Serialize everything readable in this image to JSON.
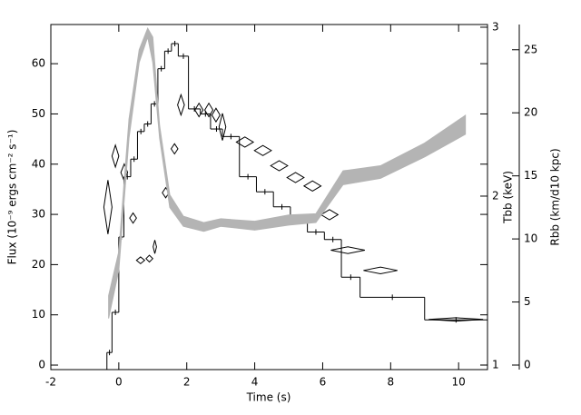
{
  "chart_data": [
    {
      "type": "histogram",
      "axis_position": "left",
      "color": "#000000",
      "xlabel": "Time (s)",
      "ylabel": "Flux (10⁻⁹ ergs cm⁻² s⁻¹)",
      "xlim": [
        -2,
        10.85
      ],
      "xticks": [
        -2,
        0,
        2,
        4,
        6,
        8,
        10
      ],
      "ylim": [
        -0.9,
        67.8
      ],
      "yticks": [
        0,
        10,
        20,
        30,
        40,
        50,
        60
      ],
      "bins": [
        -0.35,
        -0.2,
        0,
        0.15,
        0.35,
        0.55,
        0.75,
        0.95,
        1.15,
        1.35,
        1.55,
        1.75,
        2.05,
        2.4,
        2.7,
        3.05,
        3.55,
        4.05,
        4.55,
        5.05,
        5.55,
        6.05,
        6.55,
        7.1,
        9.0,
        10.85
      ],
      "values": [
        2.5,
        10.5,
        25.5,
        37.5,
        41,
        46.5,
        48,
        52,
        59,
        62.5,
        64,
        61.5,
        51,
        50,
        47,
        45.5,
        37.5,
        34.5,
        31.5,
        29,
        26.5,
        25,
        17.5,
        13.5,
        9
      ]
    },
    {
      "type": "scatter",
      "axis_position": "right",
      "color": "#000000",
      "ylabel": "Tbb (keV)",
      "ylim": [
        0.973,
        3.016
      ],
      "yticks": [
        1,
        2,
        3
      ],
      "x": [
        -0.32,
        -0.1,
        0.16,
        0.42,
        0.64,
        0.9,
        1.06,
        1.38,
        1.64,
        1.83,
        2.36,
        2.65,
        2.86,
        3.05,
        3.71,
        4.24,
        4.72,
        5.2,
        5.7,
        6.2,
        6.74,
        7.7,
        9.92
      ],
      "xerr": [
        0.12,
        0.1,
        0.1,
        0.1,
        0.12,
        0.1,
        0.05,
        0.1,
        0.1,
        0.1,
        0.12,
        0.12,
        0.12,
        0.1,
        0.25,
        0.25,
        0.25,
        0.25,
        0.25,
        0.25,
        0.5,
        0.5,
        0.8
      ],
      "values": [
        1.935,
        2.237,
        2.14,
        1.87,
        1.62,
        1.63,
        1.7,
        2.02,
        2.28,
        2.54,
        2.51,
        2.51,
        2.48,
        2.41,
        2.32,
        2.27,
        2.18,
        2.11,
        2.06,
        1.89,
        1.68,
        1.56,
        1.27
      ],
      "yerr": [
        0.16,
        0.065,
        0.05,
        0.03,
        0.02,
        0.02,
        0.04,
        0.03,
        0.03,
        0.06,
        0.04,
        0.04,
        0.04,
        0.08,
        0.03,
        0.03,
        0.03,
        0.03,
        0.03,
        0.03,
        0.02,
        0.02,
        0.01
      ]
    },
    {
      "type": "band",
      "axis_position": "outer-right",
      "color": "#b4b4b4",
      "ylabel": "Rbb (km/d10 kpc)",
      "ylim": [
        -0.36,
        27
      ],
      "yticks": [
        0,
        5,
        10,
        15,
        20,
        25
      ],
      "x": [
        -0.3,
        0,
        0.3,
        0.6,
        0.85,
        1.0,
        1.2,
        1.5,
        1.9,
        2.5,
        3.0,
        4.0,
        5.0,
        5.8,
        6.6,
        7.7,
        9.0,
        10.2
      ],
      "lower": [
        3.7,
        7.5,
        18,
        24,
        26,
        24,
        18,
        12.5,
        11,
        10.6,
        11,
        10.7,
        11.1,
        11.3,
        14.3,
        14.8,
        16.5,
        18.3
      ],
      "upper": [
        5.5,
        9,
        19.5,
        25,
        26.7,
        26,
        19,
        13.5,
        11.8,
        11.3,
        11.6,
        11.4,
        11.9,
        12,
        15.4,
        15.8,
        17.6,
        19.8
      ]
    }
  ]
}
